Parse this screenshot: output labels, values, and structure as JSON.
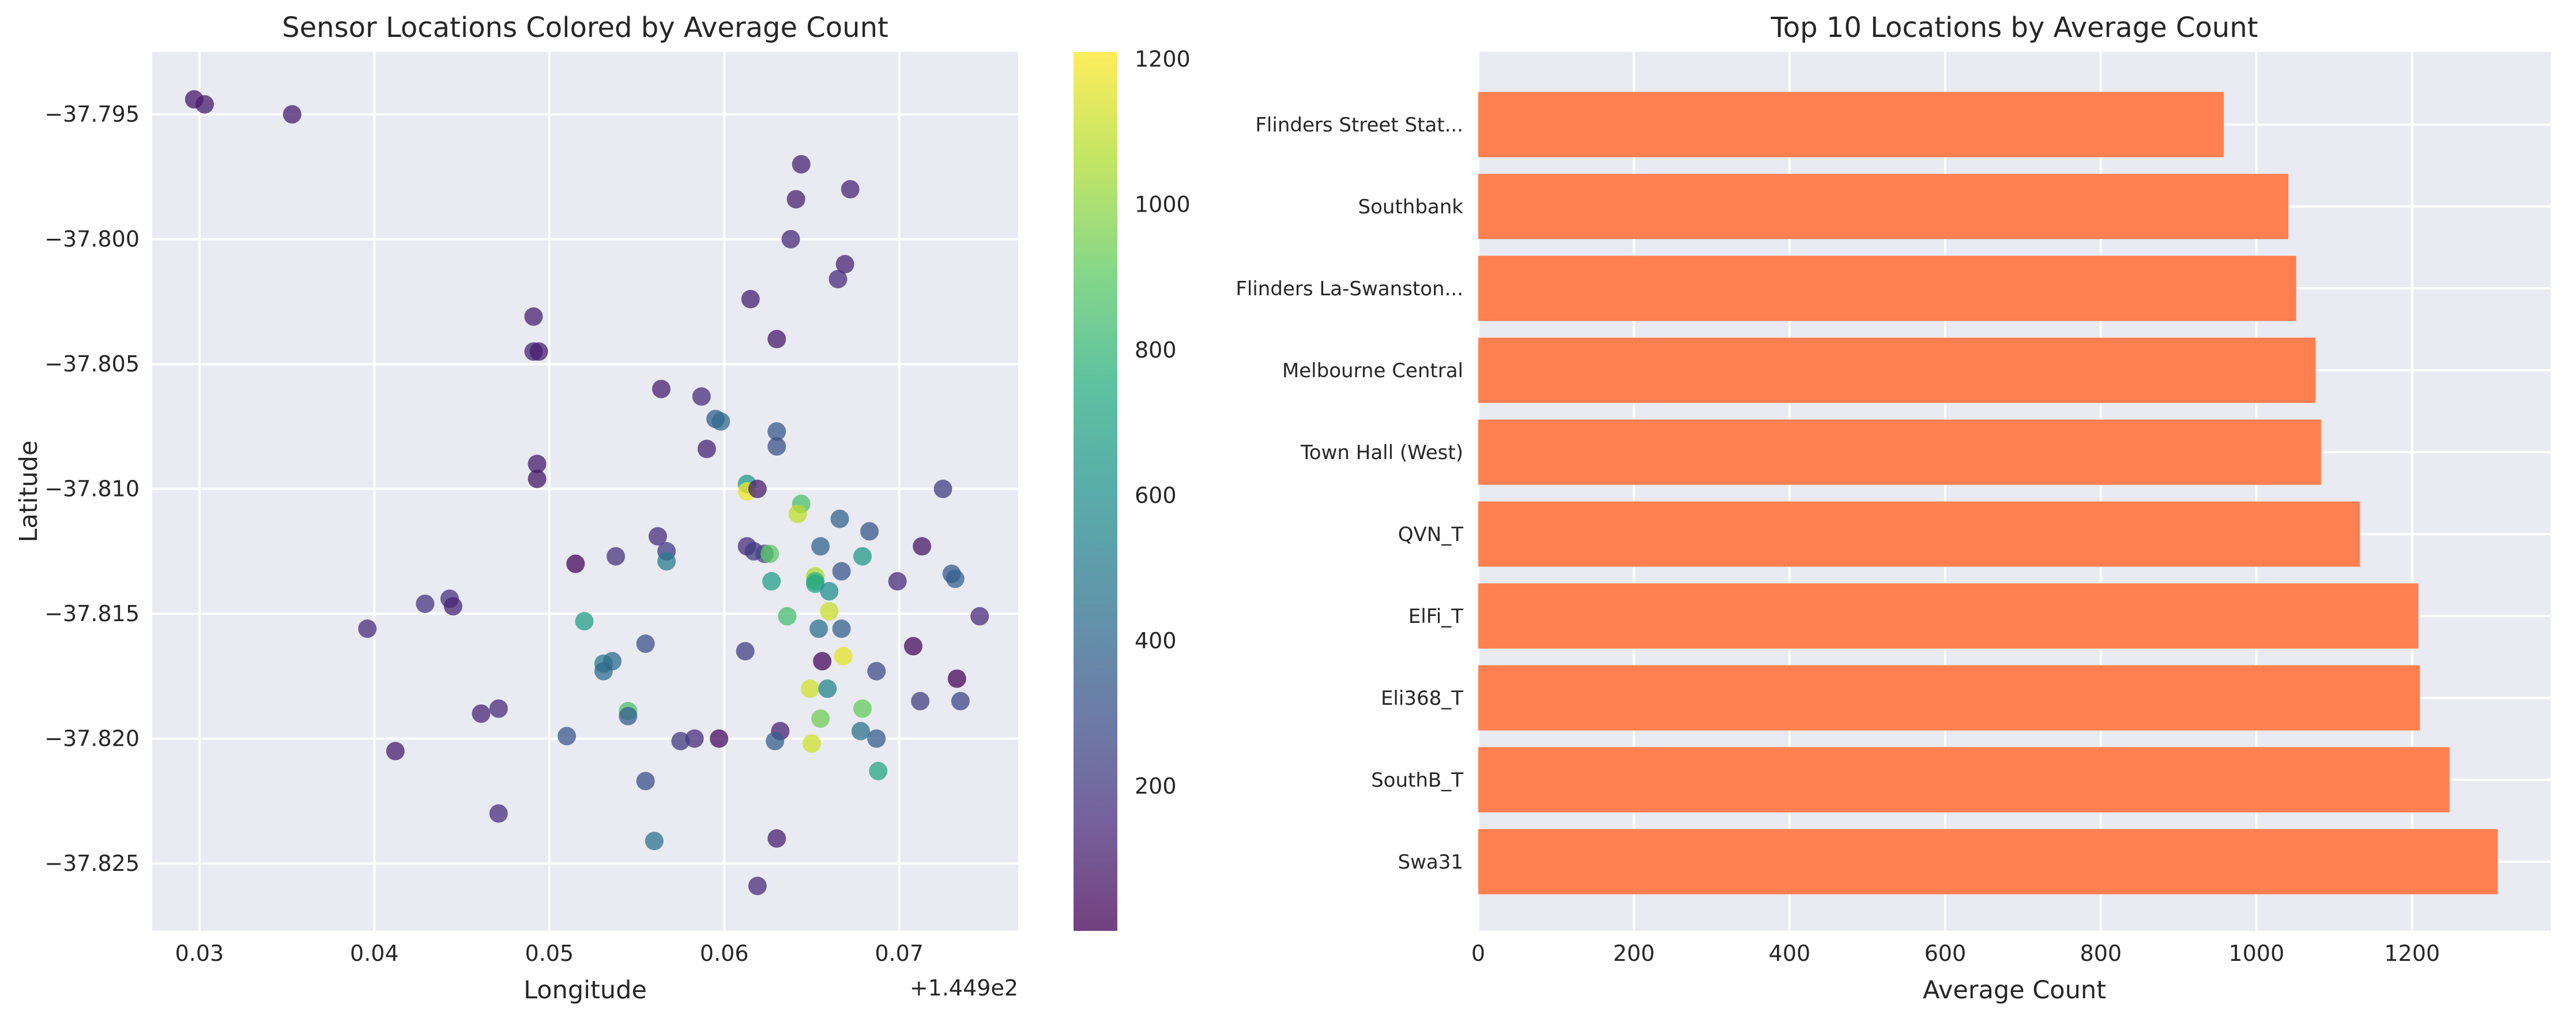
{
  "colors": {
    "axes_bg": "#eaeaf2",
    "grid": "#ffffff",
    "bar": "#ff7f50",
    "text": "#262626"
  },
  "chart_data": [
    {
      "type": "scatter",
      "title": "Sensor Locations Colored by Average Count",
      "xlabel": "Longitude",
      "ylabel": "Latitude",
      "x_offset_label": "+1.449e2",
      "xlim": [
        0.0273,
        0.0768
      ],
      "ylim": [
        -37.8277,
        -37.7925
      ],
      "xticks": [
        "0.03",
        "0.04",
        "0.05",
        "0.06",
        "0.07"
      ],
      "yticks": [
        "−37.795",
        "−37.800",
        "−37.805",
        "−37.810",
        "−37.815",
        "−37.820",
        "−37.825"
      ],
      "x_unit_note": "x values are longitude minus 144.9",
      "colormap": "viridis",
      "color_label": "Average Count",
      "color_range": [
        1,
        1210
      ],
      "colorbar_ticks": [
        "200",
        "400",
        "600",
        "800",
        "1000",
        "1200"
      ],
      "grid": true,
      "points": [
        {
          "x": 0.0297,
          "y": -37.7944,
          "c": 80
        },
        {
          "x": 0.0303,
          "y": -37.7946,
          "c": 90
        },
        {
          "x": 0.0353,
          "y": -37.795,
          "c": 100
        },
        {
          "x": 0.0644,
          "y": -37.797,
          "c": 120
        },
        {
          "x": 0.0672,
          "y": -37.798,
          "c": 130
        },
        {
          "x": 0.0641,
          "y": -37.7984,
          "c": 110
        },
        {
          "x": 0.0638,
          "y": -37.8,
          "c": 140
        },
        {
          "x": 0.0669,
          "y": -37.801,
          "c": 120
        },
        {
          "x": 0.0665,
          "y": -37.8016,
          "c": 150
        },
        {
          "x": 0.0615,
          "y": -37.8024,
          "c": 110
        },
        {
          "x": 0.0491,
          "y": -37.8031,
          "c": 120
        },
        {
          "x": 0.063,
          "y": -37.804,
          "c": 90
        },
        {
          "x": 0.0491,
          "y": -37.8045,
          "c": 130
        },
        {
          "x": 0.0494,
          "y": -37.8045,
          "c": 100
        },
        {
          "x": 0.0564,
          "y": -37.806,
          "c": 110
        },
        {
          "x": 0.0587,
          "y": -37.8063,
          "c": 160
        },
        {
          "x": 0.0595,
          "y": -37.8072,
          "c": 350
        },
        {
          "x": 0.0598,
          "y": -37.8073,
          "c": 420
        },
        {
          "x": 0.063,
          "y": -37.8077,
          "c": 330
        },
        {
          "x": 0.063,
          "y": -37.8083,
          "c": 300
        },
        {
          "x": 0.059,
          "y": -37.8084,
          "c": 120
        },
        {
          "x": 0.0493,
          "y": -37.809,
          "c": 100
        },
        {
          "x": 0.0493,
          "y": -37.8096,
          "c": 80
        },
        {
          "x": 0.0613,
          "y": -37.8098,
          "c": 650
        },
        {
          "x": 0.0613,
          "y": -37.8101,
          "c": 1180
        },
        {
          "x": 0.0619,
          "y": -37.81,
          "c": 100
        },
        {
          "x": 0.0725,
          "y": -37.81,
          "c": 210
        },
        {
          "x": 0.0644,
          "y": -37.8106,
          "c": 860
        },
        {
          "x": 0.0642,
          "y": -37.811,
          "c": 1090
        },
        {
          "x": 0.0666,
          "y": -37.8112,
          "c": 380
        },
        {
          "x": 0.0683,
          "y": -37.8117,
          "c": 330
        },
        {
          "x": 0.0562,
          "y": -37.8119,
          "c": 160
        },
        {
          "x": 0.0613,
          "y": -37.8123,
          "c": 160
        },
        {
          "x": 0.0617,
          "y": -37.8125,
          "c": 200
        },
        {
          "x": 0.0655,
          "y": -37.8123,
          "c": 390
        },
        {
          "x": 0.0713,
          "y": -37.8123,
          "c": 80
        },
        {
          "x": 0.0567,
          "y": -37.8125,
          "c": 210
        },
        {
          "x": 0.0623,
          "y": -37.8126,
          "c": 250
        },
        {
          "x": 0.0626,
          "y": -37.8126,
          "c": 900
        },
        {
          "x": 0.0679,
          "y": -37.8127,
          "c": 650
        },
        {
          "x": 0.0538,
          "y": -37.8127,
          "c": 180
        },
        {
          "x": 0.0567,
          "y": -37.8129,
          "c": 500
        },
        {
          "x": 0.0515,
          "y": -37.813,
          "c": 20
        },
        {
          "x": 0.0667,
          "y": -37.8133,
          "c": 330
        },
        {
          "x": 0.073,
          "y": -37.8134,
          "c": 340
        },
        {
          "x": 0.0732,
          "y": -37.8136,
          "c": 380
        },
        {
          "x": 0.0652,
          "y": -37.8135,
          "c": 1050
        },
        {
          "x": 0.0652,
          "y": -37.8137,
          "c": 780
        },
        {
          "x": 0.0627,
          "y": -37.8137,
          "c": 680
        },
        {
          "x": 0.0652,
          "y": -37.8138,
          "c": 720
        },
        {
          "x": 0.0699,
          "y": -37.8137,
          "c": 150
        },
        {
          "x": 0.066,
          "y": -37.8141,
          "c": 600
        },
        {
          "x": 0.0443,
          "y": -37.8144,
          "c": 180
        },
        {
          "x": 0.0429,
          "y": -37.8146,
          "c": 190
        },
        {
          "x": 0.0445,
          "y": -37.8147,
          "c": 120
        },
        {
          "x": 0.066,
          "y": -37.8149,
          "c": 1110
        },
        {
          "x": 0.0636,
          "y": -37.8151,
          "c": 840
        },
        {
          "x": 0.0746,
          "y": -37.8151,
          "c": 150
        },
        {
          "x": 0.052,
          "y": -37.8153,
          "c": 680
        },
        {
          "x": 0.0396,
          "y": -37.8156,
          "c": 150
        },
        {
          "x": 0.0654,
          "y": -37.8156,
          "c": 450
        },
        {
          "x": 0.0667,
          "y": -37.8156,
          "c": 370
        },
        {
          "x": 0.0555,
          "y": -37.8162,
          "c": 300
        },
        {
          "x": 0.0708,
          "y": -37.8163,
          "c": 30
        },
        {
          "x": 0.0612,
          "y": -37.8165,
          "c": 230
        },
        {
          "x": 0.0668,
          "y": -37.8167,
          "c": 1160
        },
        {
          "x": 0.0656,
          "y": -37.8169,
          "c": 30
        },
        {
          "x": 0.0531,
          "y": -37.817,
          "c": 500
        },
        {
          "x": 0.0536,
          "y": -37.8169,
          "c": 420
        },
        {
          "x": 0.0531,
          "y": -37.8173,
          "c": 420
        },
        {
          "x": 0.0687,
          "y": -37.8173,
          "c": 280
        },
        {
          "x": 0.0733,
          "y": -37.8176,
          "c": 20
        },
        {
          "x": 0.0649,
          "y": -37.818,
          "c": 1120
        },
        {
          "x": 0.0659,
          "y": -37.818,
          "c": 550
        },
        {
          "x": 0.0735,
          "y": -37.8185,
          "c": 250
        },
        {
          "x": 0.0712,
          "y": -37.8185,
          "c": 230
        },
        {
          "x": 0.0679,
          "y": -37.8188,
          "c": 920
        },
        {
          "x": 0.0471,
          "y": -37.8188,
          "c": 150
        },
        {
          "x": 0.0461,
          "y": -37.819,
          "c": 130
        },
        {
          "x": 0.0545,
          "y": -37.8189,
          "c": 860
        },
        {
          "x": 0.0545,
          "y": -37.8191,
          "c": 360
        },
        {
          "x": 0.0655,
          "y": -37.8192,
          "c": 940
        },
        {
          "x": 0.0632,
          "y": -37.8197,
          "c": 120
        },
        {
          "x": 0.0678,
          "y": -37.8197,
          "c": 460
        },
        {
          "x": 0.051,
          "y": -37.8199,
          "c": 330
        },
        {
          "x": 0.0583,
          "y": -37.82,
          "c": 150
        },
        {
          "x": 0.0575,
          "y": -37.8201,
          "c": 200
        },
        {
          "x": 0.0597,
          "y": -37.82,
          "c": 40
        },
        {
          "x": 0.0687,
          "y": -37.82,
          "c": 350
        },
        {
          "x": 0.0629,
          "y": -37.8201,
          "c": 360
        },
        {
          "x": 0.065,
          "y": -37.8202,
          "c": 1120
        },
        {
          "x": 0.0412,
          "y": -37.8205,
          "c": 100
        },
        {
          "x": 0.0688,
          "y": -37.8213,
          "c": 720
        },
        {
          "x": 0.0555,
          "y": -37.8217,
          "c": 290
        },
        {
          "x": 0.0471,
          "y": -37.823,
          "c": 160
        },
        {
          "x": 0.063,
          "y": -37.824,
          "c": 110
        },
        {
          "x": 0.056,
          "y": -37.8241,
          "c": 460
        },
        {
          "x": 0.0619,
          "y": -37.8259,
          "c": 150
        }
      ]
    },
    {
      "type": "bar",
      "orientation": "horizontal",
      "title": "Top 10 Locations by Average Count",
      "xlabel": "Average Count",
      "xlim": [
        0,
        1378
      ],
      "xticks": [
        "0",
        "200",
        "400",
        "600",
        "800",
        "1000",
        "1200"
      ],
      "grid": true,
      "categories": [
        "Flinders Street Stat...",
        "Southbank",
        "Flinders La-Swanston...",
        "Melbourne Central",
        "Town Hall (West)",
        "QVN_T",
        "ElFi_T",
        "Eli368_T",
        "SouthB_T",
        "Swa31"
      ],
      "values": [
        958,
        1041,
        1051,
        1076,
        1083,
        1133,
        1208,
        1210,
        1248,
        1310
      ]
    }
  ]
}
